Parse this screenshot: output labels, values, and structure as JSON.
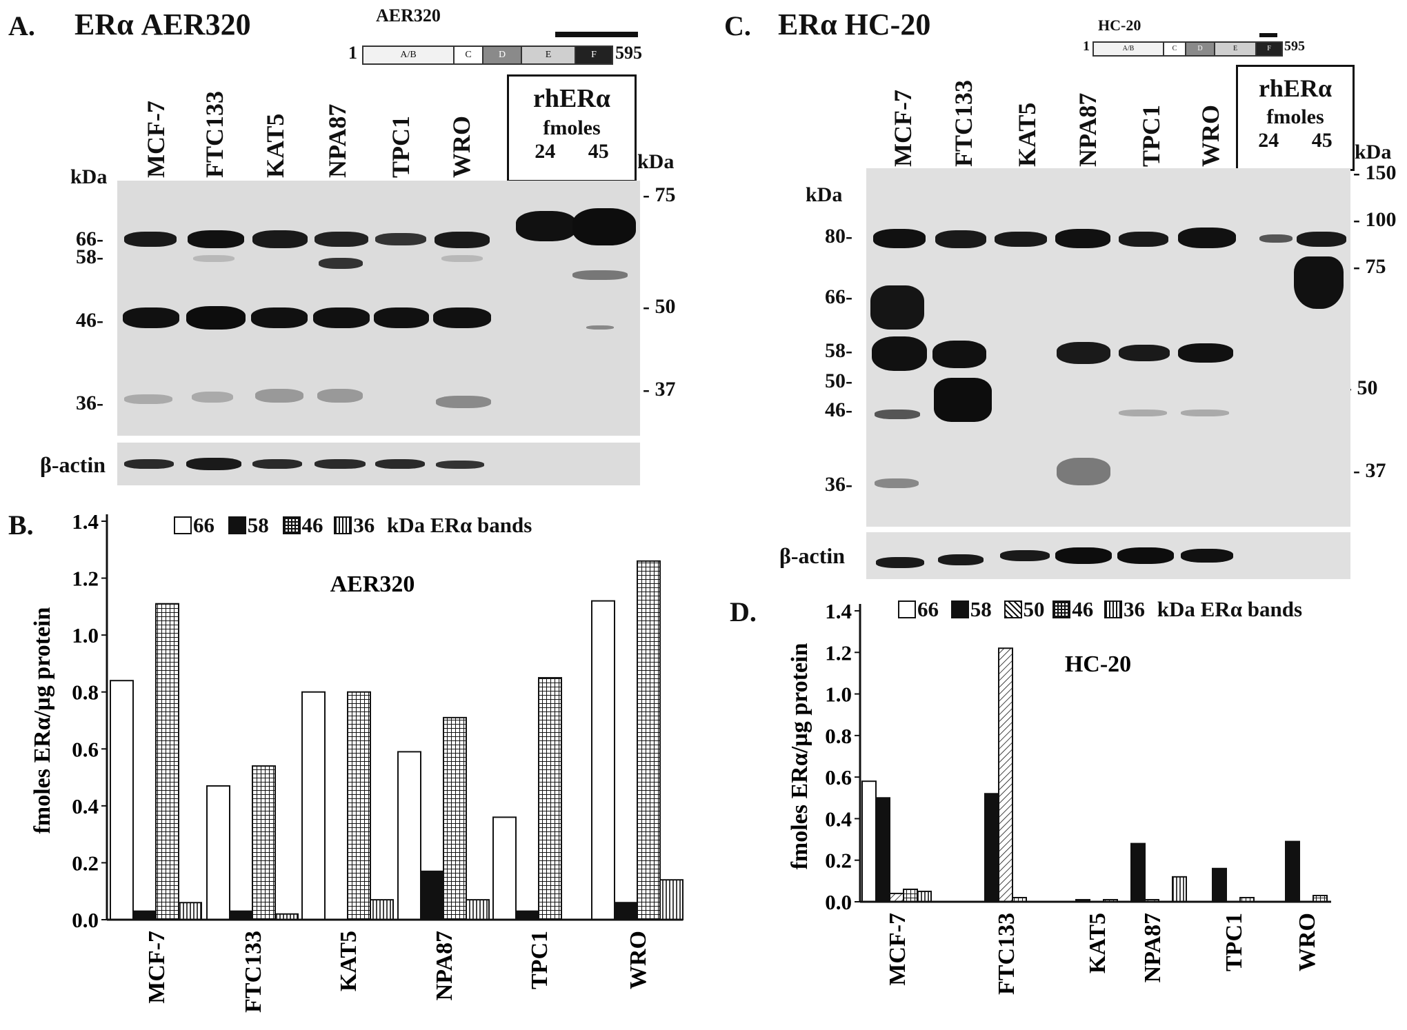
{
  "panel_a": {
    "letter": "A.",
    "title": "ERα AER320",
    "domain_map": {
      "label": "AER320",
      "start": "1",
      "end": "595",
      "domains": [
        "A/B",
        "C",
        "D",
        "E",
        "F"
      ]
    },
    "lanes": [
      "MCF-7",
      "FTC133",
      "KAT5",
      "NPA87",
      "TPC1",
      "WRO"
    ],
    "rh_box": {
      "title": "rhERα",
      "sub": "fmoles",
      "lanes": [
        "24",
        "45"
      ]
    },
    "left_kda": "kDa",
    "left_markers": [
      "66-",
      "58-",
      "46-",
      "36-"
    ],
    "right_kda": "kDa",
    "right_markers": [
      "- 75",
      "- 50",
      "- 37"
    ],
    "actin": "β-actin"
  },
  "panel_c": {
    "letter": "C.",
    "title": "ERα HC-20",
    "domain_map": {
      "label": "HC-20",
      "start": "1",
      "end": "595",
      "domains": [
        "A/B",
        "C",
        "D",
        "E",
        "F"
      ]
    },
    "lanes": [
      "MCF-7",
      "FTC133",
      "KAT5",
      "NPA87",
      "TPC1",
      "WRO"
    ],
    "rh_box": {
      "title": "rhERα",
      "sub": "fmoles",
      "lanes": [
        "24",
        "45"
      ]
    },
    "left_kda": "kDa",
    "left_markers": [
      "80-",
      "66-",
      "58-",
      "50-",
      "46-",
      "36-"
    ],
    "right_kda": "kDa",
    "right_markers": [
      "- 150",
      "- 100",
      "- 75",
      "- 50",
      "- 37"
    ],
    "actin": "β-actin"
  },
  "chart_data": [
    {
      "type": "bar",
      "panel": "B.",
      "title": "AER320",
      "ylabel": "fmoles ERα/µg protein",
      "ylim": [
        0,
        1.4
      ],
      "yticks": [
        "0.0",
        "0.2",
        "0.4",
        "0.6",
        "0.8",
        "1.0",
        "1.2",
        "1.4"
      ],
      "legend_suffix": "kDa ERα bands",
      "categories": [
        "MCF-7",
        "FTC133",
        "KAT5",
        "NPA87",
        "TPC1",
        "WRO"
      ],
      "series": [
        {
          "name": "66",
          "pattern": "white",
          "values": [
            0.84,
            0.47,
            0.8,
            0.59,
            0.36,
            1.12
          ]
        },
        {
          "name": "58",
          "pattern": "black",
          "values": [
            0.03,
            0.03,
            0.0,
            0.17,
            0.03,
            0.06
          ]
        },
        {
          "name": "46",
          "pattern": "grid",
          "values": [
            1.11,
            0.54,
            0.8,
            0.71,
            0.85,
            1.26
          ]
        },
        {
          "name": "36",
          "pattern": "vert",
          "values": [
            0.06,
            0.02,
            0.07,
            0.07,
            0.0,
            0.14
          ]
        }
      ]
    },
    {
      "type": "bar",
      "panel": "D.",
      "title": "HC-20",
      "ylabel": "fmoles ERα/µg protein",
      "ylim": [
        0,
        1.4
      ],
      "yticks": [
        "0.0",
        "0.2",
        "0.4",
        "0.6",
        "0.8",
        "1.0",
        "1.2",
        "1.4"
      ],
      "legend_suffix": "kDa ERα bands",
      "categories": [
        "MCF-7",
        "FTC133",
        "KAT5",
        "NPA87",
        "TPC1",
        "WRO"
      ],
      "series": [
        {
          "name": "66",
          "pattern": "white",
          "values": [
            0.58,
            0.0,
            0.0,
            0.0,
            0.0,
            0.0
          ]
        },
        {
          "name": "58",
          "pattern": "black",
          "values": [
            0.5,
            0.52,
            0.01,
            0.28,
            0.16,
            0.29
          ]
        },
        {
          "name": "50",
          "pattern": "diag",
          "values": [
            0.04,
            1.22,
            0.0,
            0.01,
            0.0,
            0.0
          ]
        },
        {
          "name": "46",
          "pattern": "grid",
          "values": [
            0.06,
            0.02,
            0.01,
            0.0,
            0.02,
            0.03
          ]
        },
        {
          "name": "36",
          "pattern": "vert",
          "values": [
            0.05,
            0.0,
            0.0,
            0.12,
            0.0,
            0.0
          ]
        }
      ]
    }
  ]
}
